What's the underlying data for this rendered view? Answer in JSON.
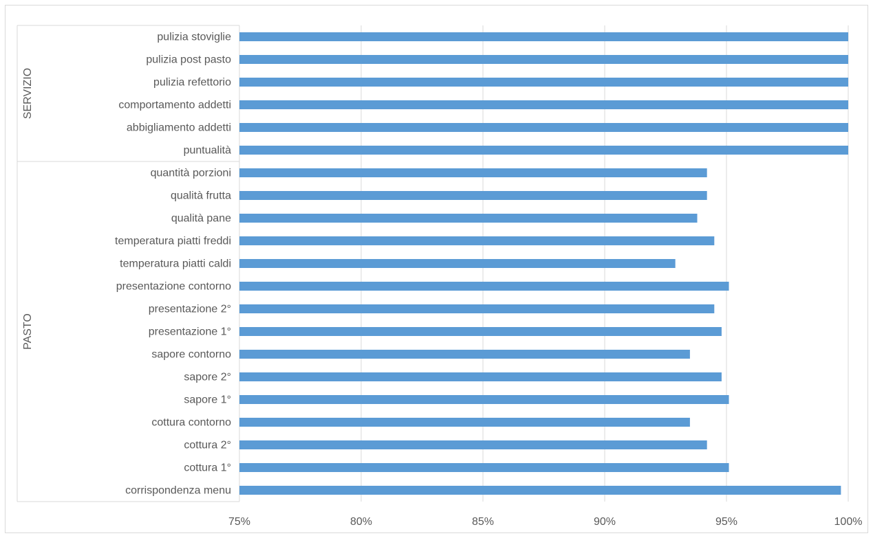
{
  "chart_data": {
    "type": "bar",
    "orientation": "horizontal",
    "title": "",
    "xlabel": "",
    "ylabel": "",
    "xlim": [
      0.75,
      1.0
    ],
    "x_ticks": [
      "75%",
      "80%",
      "85%",
      "90%",
      "95%",
      "100%"
    ],
    "x_tick_values": [
      0.75,
      0.8,
      0.85,
      0.9,
      0.95,
      1.0
    ],
    "grid": "vertical",
    "bar_color": "#5b9bd5",
    "groups": [
      {
        "name": "SERVIZIO",
        "categories": [
          "pulizia stoviglie",
          "pulizia post pasto",
          "pulizia refettorio",
          "comportamento addetti",
          "abbigliamento addetti",
          "puntualità"
        ],
        "values": [
          1.0,
          1.0,
          1.0,
          1.0,
          1.0,
          1.0
        ]
      },
      {
        "name": "PASTO",
        "categories": [
          "quantità porzioni",
          "qualità frutta",
          "qualità pane",
          "temperatura piatti freddi",
          "temperatura piatti caldi",
          "presentazione contorno",
          "presentazione 2°",
          "presentazione 1°",
          "sapore contorno",
          "sapore 2°",
          "sapore 1°",
          "cottura contorno",
          "cottura 2°",
          "cottura 1°",
          "corrispondenza menu"
        ],
        "values": [
          0.942,
          0.942,
          0.938,
          0.945,
          0.929,
          0.951,
          0.945,
          0.948,
          0.935,
          0.948,
          0.951,
          0.935,
          0.942,
          0.951,
          0.997
        ]
      }
    ]
  }
}
